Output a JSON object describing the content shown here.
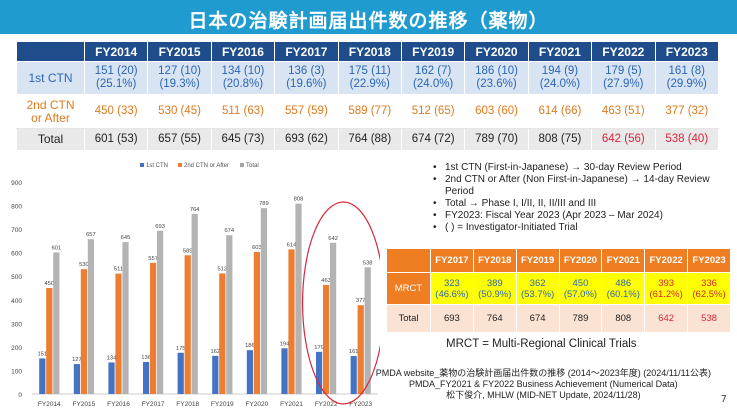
{
  "slide_title": "日本の治験計画届出件数の推移（薬物）",
  "main_table": {
    "corner": "",
    "years": [
      "FY2014",
      "FY2015",
      "FY2016",
      "FY2017",
      "FY2018",
      "FY2019",
      "FY2020",
      "FY2021",
      "FY2022",
      "FY2023"
    ],
    "rows": [
      {
        "label": "1st CTN",
        "cells": [
          "151 (20)\n(25.1%)",
          "127 (10)\n(19.3%)",
          "134 (10)\n(20.8%)",
          "136 (3)\n(19.6%)",
          "175 (11)\n(22.9%)",
          "162 (7)\n(24.0%)",
          "186 (10)\n(23.6%)",
          "194 (9)\n(24.0%)",
          "179 (5)\n(27.9%)",
          "161 (8)\n(29.9%)"
        ]
      },
      {
        "label": "2nd CTN\nor After",
        "cells": [
          "450 (33)",
          "530 (45)",
          "511 (63)",
          "557 (59)",
          "589 (77)",
          "512 (65)",
          "603 (60)",
          "614 (66)",
          "463 (51)",
          "377 (32)"
        ]
      },
      {
        "label": "Total",
        "cells": [
          "601 (53)",
          "657 (55)",
          "645 (73)",
          "693 (62)",
          "764 (88)",
          "674 (72)",
          "789 (70)",
          "808 (75)",
          "642 (56)",
          "538 (40)"
        ]
      }
    ]
  },
  "chart_data": {
    "type": "bar",
    "categories": [
      "FY2014",
      "FY2015",
      "FY2016",
      "FY2017",
      "FY2018",
      "FY2019",
      "FY2020",
      "FY2021",
      "FY2022",
      "FY2023"
    ],
    "series": [
      {
        "name": "1st CTN",
        "values": [
          151,
          127,
          134,
          136,
          175,
          162,
          186,
          194,
          179,
          161
        ],
        "color": "#4472c4"
      },
      {
        "name": "2nd CTN or After",
        "values": [
          450,
          530,
          511,
          557,
          589,
          512,
          603,
          614,
          463,
          377
        ],
        "color": "#ed7d31"
      },
      {
        "name": "Total",
        "values": [
          601,
          657,
          645,
          693,
          764,
          674,
          789,
          808,
          642,
          538
        ],
        "color": "#a5a5a5"
      }
    ],
    "yticks": [
      "0",
      "100",
      "200",
      "300",
      "400",
      "500",
      "600",
      "700",
      "800",
      "900"
    ],
    "ylim": [
      0,
      900
    ],
    "grid": false,
    "legend": "top",
    "annotation": "red ellipse around FY2022-FY2023",
    "highlight_color": "#d7263d"
  },
  "notes": [
    "1st CTN (First-in-Japanese) → 30-day Review Period",
    "2nd CTN or After (Non First-in-Japanese) → 14-day Review Period",
    "Total → Phase I, I/II, II, II/III and III",
    "FY2023: Fiscal Year 2023 (Apr 2023 – Mar 2024)",
    "( ) = Investigator-Initiated Trial"
  ],
  "mrct_table": {
    "years": [
      "FY2017",
      "FY2018",
      "FY2019",
      "FY2020",
      "FY2021",
      "FY2022",
      "FY2023"
    ],
    "rows": [
      {
        "label": "MRCT",
        "cells": [
          "323\n(46.6%)",
          "389\n(50.9%)",
          "362\n(53.7%)",
          "450\n(57.0%)",
          "486\n(60.1%)",
          "393\n(61.2%)",
          "336\n(62.5%)"
        ]
      },
      {
        "label": "Total",
        "cells": [
          "693",
          "764",
          "674",
          "789",
          "808",
          "642",
          "538"
        ]
      }
    ]
  },
  "mrct_definition": "MRCT = Multi-Regional Clinical Trials",
  "sources": [
    "PMDA website_薬物の治験計画届出件数の推移 (2014～2023年度) (2024/11/11公表)",
    "PMDA_FY2021 & FY2022 Business Achievement (Numerical Data)",
    "松下俊介, MHLW (MID-NET Update, 2024/11/28)"
  ],
  "page_number": "7"
}
